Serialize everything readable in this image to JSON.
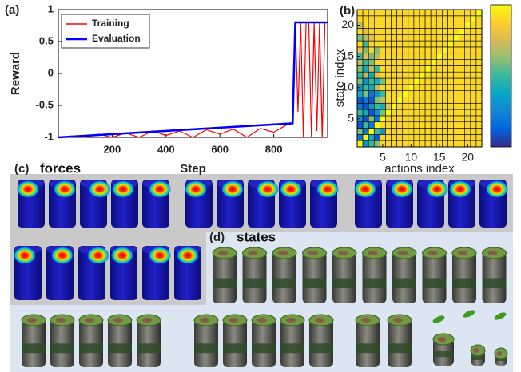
{
  "chart_data": [
    {
      "type": "line",
      "panel_label": "(a)",
      "xlabel": "Step",
      "ylabel": "Reward",
      "xlim": [
        0,
        1000
      ],
      "xticks": [
        200,
        400,
        600,
        800
      ],
      "ylim": [
        -1,
        1
      ],
      "yticks": [
        -1,
        -0.5,
        0,
        0.5,
        1
      ],
      "legend": "upper left",
      "series": [
        {
          "name": "Training",
          "color": "#ff0000",
          "x": [
            0,
            50,
            100,
            150,
            200,
            250,
            300,
            350,
            400,
            450,
            500,
            550,
            600,
            650,
            700,
            750,
            800,
            850,
            870,
            880,
            890,
            900,
            910,
            920,
            930,
            940,
            950,
            960,
            970,
            980,
            990,
            1000
          ],
          "values": [
            -1,
            -0.98,
            -1,
            -0.95,
            -1,
            -0.93,
            -1,
            -0.9,
            -0.97,
            -0.9,
            -1,
            -0.88,
            -0.95,
            -0.87,
            -1,
            -0.86,
            -0.92,
            -0.8,
            -0.78,
            0.8,
            -0.6,
            0.8,
            -1,
            0.8,
            0.8,
            -1,
            0.8,
            -0.9,
            0.8,
            -1,
            0.8,
            0.8
          ]
        },
        {
          "name": "Evaluation",
          "color": "#0000ff",
          "x": [
            0,
            870,
            880,
            1000
          ],
          "values": [
            -1,
            -0.78,
            0.8,
            0.8
          ]
        }
      ]
    },
    {
      "type": "heatmap",
      "panel_label": "(b)",
      "xlabel": "actions index",
      "ylabel": "state index",
      "xlim": [
        0.5,
        22.5
      ],
      "xticks": [
        5,
        10,
        15,
        20
      ],
      "ylim": [
        0.5,
        22.5
      ],
      "yticks": [
        5,
        10,
        15,
        20
      ],
      "zlim": [
        0,
        1
      ],
      "colormap": [
        "#352a87",
        "#0363e1",
        "#1485d4",
        "#06a7c6",
        "#38b99e",
        "#92bf73",
        "#d9ba56",
        "#fcce2e",
        "#f9fb0e"
      ],
      "z": [
        [
          1,
          0.3,
          0.5,
          0.6,
          0.9,
          0.9,
          0.9,
          0.9,
          0.9,
          0.9,
          0.9,
          0.9,
          0.9,
          0.9,
          0.9,
          0.9,
          0.9,
          0.9,
          0.9,
          0.9,
          0.9,
          0.9
        ],
        [
          0.2,
          1,
          0.4,
          0.1,
          0.9,
          0.9,
          0.9,
          0.9,
          0.9,
          0.9,
          0.9,
          0.9,
          0.9,
          0.9,
          0.9,
          0.9,
          0.9,
          0.9,
          0.9,
          0.9,
          0.9,
          0.9
        ],
        [
          0.6,
          0.2,
          1,
          0.5,
          0.3,
          0.9,
          0.9,
          0.9,
          0.9,
          0.9,
          0.9,
          0.9,
          0.9,
          0.9,
          0.9,
          0.9,
          0.9,
          0.9,
          0.9,
          0.9,
          0.9,
          0.9
        ],
        [
          0.1,
          0.5,
          0.2,
          1,
          0.9,
          0.9,
          0.9,
          0.9,
          0.9,
          0.9,
          0.9,
          0.9,
          0.9,
          0.9,
          0.9,
          0.9,
          0.9,
          0.9,
          0.9,
          0.9,
          0.9,
          0.9
        ],
        [
          0.3,
          0.1,
          0.6,
          0.2,
          1,
          0.9,
          0.9,
          0.9,
          0.9,
          0.9,
          0.9,
          0.9,
          0.9,
          0.9,
          0.9,
          0.9,
          0.9,
          0.9,
          0.9,
          0.9,
          0.9,
          0.9
        ],
        [
          0.5,
          0.4,
          0.1,
          0.3,
          0.6,
          1,
          0.9,
          0.9,
          0.9,
          0.9,
          0.9,
          0.9,
          0.9,
          0.9,
          0.9,
          0.9,
          0.9,
          0.9,
          0.9,
          0.9,
          0.9,
          0.9
        ],
        [
          0.2,
          0.1,
          0.3,
          0.5,
          0.4,
          0.8,
          1,
          0.9,
          0.9,
          0.9,
          0.9,
          0.9,
          0.9,
          0.9,
          0.9,
          0.9,
          0.9,
          0.9,
          0.9,
          0.9,
          0.9,
          0.9
        ],
        [
          0.1,
          0.2,
          0.1,
          0.6,
          0.7,
          0.9,
          0.9,
          1,
          0.9,
          0.9,
          0.9,
          0.9,
          0.9,
          0.9,
          0.9,
          0.9,
          0.9,
          0.9,
          0.9,
          0.9,
          0.9,
          0.9
        ],
        [
          0.4,
          0.6,
          0.2,
          0.3,
          0.5,
          0.9,
          0.9,
          0.9,
          1,
          0.9,
          0.9,
          0.9,
          0.9,
          0.9,
          0.9,
          0.9,
          0.9,
          0.9,
          0.9,
          0.9,
          0.9,
          0.9
        ],
        [
          0.3,
          0.5,
          0.4,
          0.7,
          0.9,
          0.9,
          0.9,
          0.9,
          0.9,
          1,
          0.9,
          0.9,
          0.9,
          0.9,
          0.9,
          0.9,
          0.9,
          0.9,
          0.9,
          0.9,
          0.9,
          0.9
        ],
        [
          0.6,
          0.3,
          0.5,
          0.4,
          0.6,
          0.9,
          0.9,
          0.9,
          0.9,
          0.9,
          1,
          0.9,
          0.9,
          0.9,
          0.9,
          0.9,
          0.9,
          0.9,
          0.9,
          0.9,
          0.9,
          0.9
        ],
        [
          0.5,
          0.7,
          0.4,
          0.8,
          0.9,
          0.9,
          0.9,
          0.9,
          0.9,
          0.9,
          0.9,
          1,
          0.9,
          0.9,
          0.9,
          0.9,
          0.9,
          0.9,
          0.9,
          0.9,
          0.9,
          0.9
        ],
        [
          0.6,
          0.4,
          0.7,
          0.5,
          0.9,
          0.9,
          0.9,
          0.9,
          0.9,
          0.9,
          0.9,
          0.9,
          1,
          0.9,
          0.9,
          0.9,
          0.9,
          0.9,
          0.9,
          0.9,
          0.9,
          0.9
        ],
        [
          0.7,
          0.5,
          0.6,
          0.9,
          0.9,
          0.9,
          0.9,
          0.9,
          0.9,
          0.9,
          0.9,
          0.9,
          0.9,
          1,
          0.9,
          0.9,
          0.9,
          0.9,
          0.9,
          0.9,
          0.9,
          0.9
        ],
        [
          0.5,
          0.8,
          0.6,
          0.7,
          0.9,
          0.9,
          0.9,
          0.9,
          0.9,
          0.9,
          0.9,
          0.9,
          0.9,
          0.9,
          1,
          0.9,
          0.9,
          0.9,
          0.9,
          0.9,
          0.9,
          0.9
        ],
        [
          0.8,
          0.6,
          0.9,
          0.6,
          0.9,
          0.9,
          0.9,
          0.9,
          0.9,
          0.9,
          0.9,
          0.9,
          0.9,
          0.9,
          0.9,
          1,
          0.9,
          0.9,
          0.9,
          0.9,
          0.9,
          0.9
        ],
        [
          0.9,
          0.5,
          0.9,
          0.9,
          0.9,
          0.9,
          0.9,
          0.9,
          0.9,
          0.9,
          0.9,
          0.9,
          0.9,
          0.9,
          0.9,
          0.9,
          1,
          0.9,
          0.9,
          0.9,
          0.9,
          0.9
        ],
        [
          0.6,
          0.7,
          0.8,
          0.9,
          0.9,
          0.9,
          0.9,
          0.9,
          0.9,
          0.9,
          0.9,
          0.9,
          0.9,
          0.9,
          0.9,
          0.9,
          0.9,
          1,
          0.9,
          0.9,
          0.9,
          0.9
        ],
        [
          0.9,
          0.8,
          0.9,
          0.9,
          0.9,
          0.9,
          0.9,
          0.9,
          0.9,
          0.9,
          0.9,
          0.9,
          0.9,
          0.9,
          0.9,
          0.9,
          0.9,
          0.9,
          1,
          0.9,
          0.9,
          0.9
        ],
        [
          0.7,
          0.9,
          0.9,
          0.9,
          0.9,
          0.9,
          0.9,
          0.9,
          0.9,
          0.9,
          0.9,
          0.9,
          0.9,
          0.9,
          0.9,
          0.9,
          0.9,
          0.9,
          0.9,
          1,
          0.9,
          0.9
        ],
        [
          0.9,
          0.9,
          0.9,
          0.9,
          0.9,
          0.9,
          0.9,
          0.9,
          0.9,
          0.9,
          0.9,
          0.9,
          0.9,
          0.9,
          0.9,
          0.9,
          0.9,
          0.9,
          0.9,
          0.9,
          1,
          0.9
        ],
        [
          0.9,
          0.9,
          0.9,
          0.9,
          0.9,
          0.9,
          0.9,
          0.9,
          0.9,
          0.9,
          0.9,
          0.9,
          0.9,
          0.9,
          0.9,
          0.9,
          0.9,
          0.9,
          0.9,
          0.9,
          0.9,
          1
        ]
      ]
    }
  ],
  "panels": [
    {
      "label": "(c)",
      "title": "forces"
    },
    {
      "label": "(d)",
      "title": "states"
    }
  ]
}
